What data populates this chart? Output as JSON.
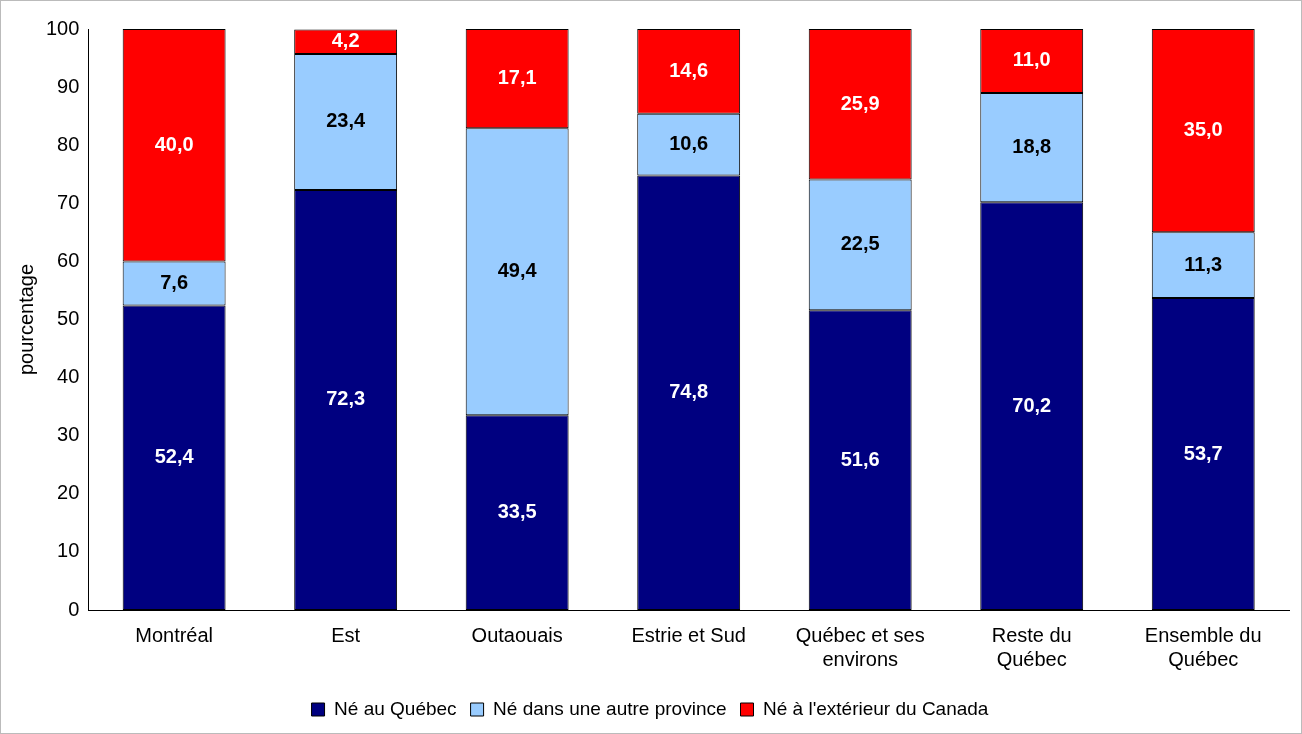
{
  "chart_data": {
    "type": "bar",
    "stacked": true,
    "ylabel": "pourcentage",
    "categories": [
      "Montréal",
      "Est",
      "Outaouais",
      "Estrie et Sud",
      "Québec et ses environs",
      "Reste du Québec",
      "Ensemble du Québec"
    ],
    "series": [
      {
        "name": "Né au Québec",
        "color": "#000080",
        "values": [
          52.4,
          72.3,
          33.5,
          74.8,
          51.6,
          70.2,
          53.7
        ],
        "value_labels": [
          "52,4",
          "72,3",
          "33,5",
          "74,8",
          "51,6",
          "70,2",
          "53,7"
        ]
      },
      {
        "name": "Né dans une autre province",
        "color": "#99ccff",
        "values": [
          7.6,
          23.4,
          49.4,
          10.6,
          22.5,
          18.8,
          11.3
        ],
        "value_labels": [
          "7,6",
          "23,4",
          "49,4",
          "10,6",
          "22,5",
          "18,8",
          "11,3"
        ]
      },
      {
        "name": "Né à l'extérieur du Canada",
        "color": "#ff0000",
        "values": [
          40.0,
          4.2,
          17.1,
          14.6,
          25.9,
          11.0,
          35.0
        ],
        "value_labels": [
          "40,0",
          "4,2",
          "17,1",
          "14,6",
          "25,9",
          "11,0",
          "35,0"
        ]
      }
    ],
    "ylim": [
      0,
      100
    ],
    "yticks": [
      0,
      10,
      20,
      30,
      40,
      50,
      60,
      70,
      80,
      90,
      100
    ],
    "grid": false,
    "legend": "bottom"
  }
}
